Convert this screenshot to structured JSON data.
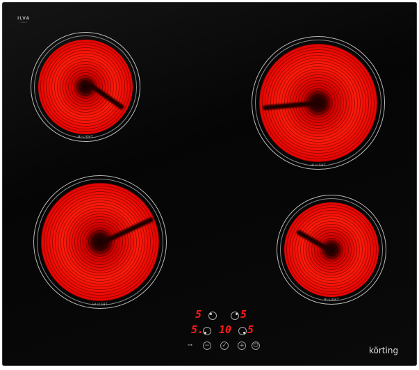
{
  "logo": {
    "text": "ILVA",
    "sub": "ITALY"
  },
  "zones": [
    {
      "name": "top-left",
      "label": "HI-LIGHT"
    },
    {
      "name": "top-right",
      "label": "HI-LIGHT"
    },
    {
      "name": "bottom-left",
      "label": "HI-LIGHT"
    },
    {
      "name": "bottom-right",
      "label": "HI-LIGHT"
    }
  ],
  "controls": {
    "zone_tl_level": "5",
    "zone_tr_level": "5",
    "zone_bl_level": "5.",
    "zone_br_level": "5",
    "timer": "10",
    "buttons": [
      "key-lock",
      "minus",
      "timer",
      "plus",
      "power"
    ]
  },
  "brand": "körting",
  "colors": {
    "heat": "#ff1a0a",
    "glass": "#050505",
    "display": "#ff1a1a"
  }
}
